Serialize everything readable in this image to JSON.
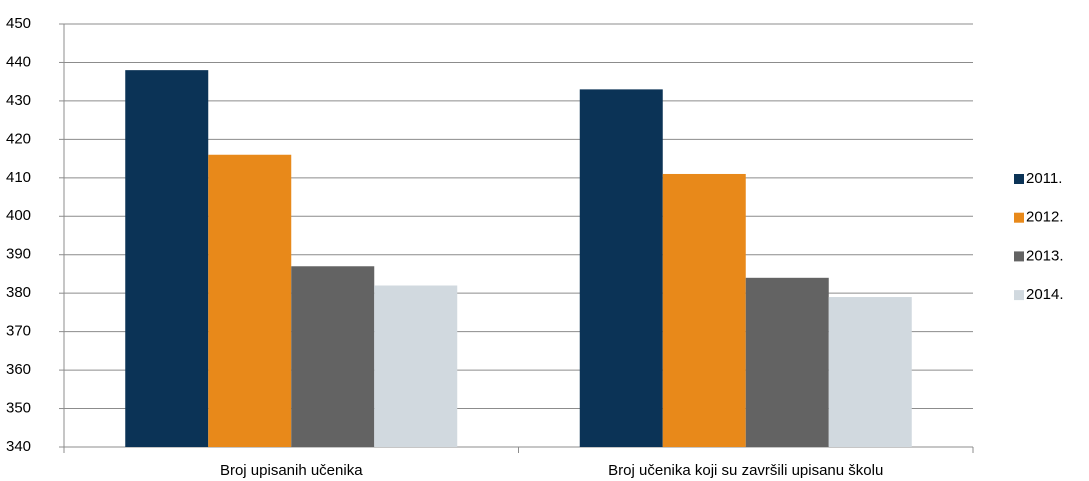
{
  "chart_data": {
    "type": "bar",
    "categories": [
      "Broj upisanih učenika",
      "Broj učenika koji su završili upisanu školu"
    ],
    "series": [
      {
        "name": "2011.",
        "color": "#0b3356",
        "values": [
          438,
          433
        ]
      },
      {
        "name": "2012.",
        "color": "#e8891a",
        "values": [
          416,
          411
        ]
      },
      {
        "name": "2013.",
        "color": "#636363",
        "values": [
          387,
          384
        ]
      },
      {
        "name": "2014.",
        "color": "#d1d9df",
        "values": [
          382,
          379
        ]
      }
    ],
    "ylim": [
      340,
      450
    ],
    "yticks": [
      340,
      350,
      360,
      370,
      380,
      390,
      400,
      410,
      420,
      430,
      440,
      450
    ],
    "grid": true,
    "legend": "right"
  }
}
